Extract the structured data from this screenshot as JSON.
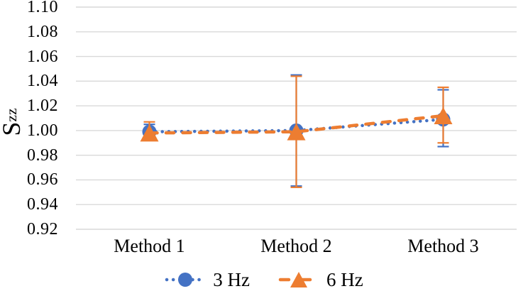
{
  "chart_data": {
    "type": "line",
    "title": "",
    "xlabel": "",
    "ylabel": "Szz",
    "ylabel_main": "S",
    "ylabel_sub": "zz",
    "categories": [
      "Method 1",
      "Method 2",
      "Method 3"
    ],
    "series": [
      {
        "name": "3 Hz",
        "color": "#4472C4",
        "marker": "circle",
        "line_style": "dotted",
        "values": [
          0.999,
          1.0,
          1.009
        ],
        "error_plus": [
          0.006,
          0.045,
          0.024
        ],
        "error_minus": [
          0.006,
          0.045,
          0.022
        ]
      },
      {
        "name": "6 Hz",
        "color": "#ED7D31",
        "marker": "triangle",
        "line_style": "dashed",
        "values": [
          0.998,
          0.999,
          1.012
        ],
        "error_plus": [
          0.009,
          0.045,
          0.023
        ],
        "error_minus": [
          0.005,
          0.045,
          0.022
        ]
      }
    ],
    "ylim": [
      0.92,
      1.1
    ],
    "ytick_step": 0.02,
    "yticks": [
      "1.10",
      "1.08",
      "1.06",
      "1.04",
      "1.02",
      "1.00",
      "0.98",
      "0.96",
      "0.94",
      "0.92"
    ],
    "grid": true,
    "gridline_color": "#D9D9D9",
    "background_color": "#FFFFFF",
    "legend_position": "bottom-center",
    "legend": [
      "3 Hz",
      "6 Hz"
    ]
  }
}
